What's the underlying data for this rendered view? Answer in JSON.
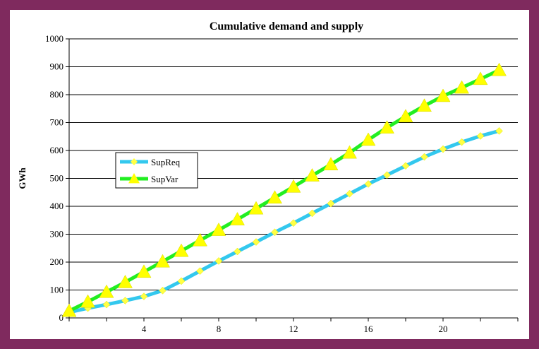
{
  "colors": {
    "background": "#7f2a5e",
    "plot_background": "#ffffff",
    "supreq_line": "#33c8ee",
    "supreq_marker": "#ffff44",
    "supvar_line": "#22ee22",
    "supvar_marker": "#ffff00"
  },
  "chart_data": {
    "type": "line",
    "title": "Cumulative demand and supply",
    "xlabel": "",
    "ylabel": "GWh",
    "xlim": [
      0,
      24
    ],
    "ylim": [
      0,
      1000
    ],
    "x_ticks": [
      4,
      8,
      12,
      16,
      20
    ],
    "y_ticks": [
      0,
      100,
      200,
      300,
      400,
      500,
      600,
      700,
      800,
      900,
      1000
    ],
    "grid": "horizontal",
    "legend_position": "center-left",
    "x": [
      0,
      1,
      2,
      3,
      4,
      5,
      6,
      7,
      8,
      9,
      10,
      11,
      12,
      13,
      14,
      15,
      16,
      17,
      18,
      19,
      20,
      21,
      22,
      23
    ],
    "series": [
      {
        "name": "SupReq",
        "marker": "diamond",
        "values": [
          20,
          35,
          48,
          62,
          77,
          98,
          132,
          168,
          204,
          238,
          272,
          307,
          340,
          375,
          410,
          445,
          480,
          512,
          545,
          577,
          605,
          630,
          652,
          670
        ]
      },
      {
        "name": "SupVar",
        "marker": "triangle",
        "values": [
          25,
          58,
          93,
          128,
          165,
          202,
          240,
          278,
          315,
          353,
          392,
          431,
          470,
          510,
          550,
          592,
          638,
          682,
          722,
          760,
          795,
          825,
          856,
          888
        ]
      }
    ]
  }
}
